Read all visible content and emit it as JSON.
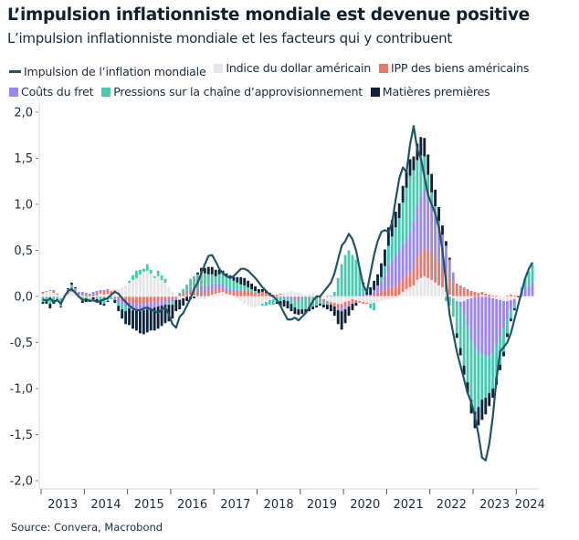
{
  "title": "L’impulsion inflationniste mondiale est devenue positive",
  "subtitle": "L’impulsion inflationniste mondiale et les facteurs qui y contribuent",
  "source": "Source: Convera, Macrobond",
  "legend": [
    {
      "label": "Impulsion de l’inflation mondiale",
      "type": "line",
      "color": "#1f5566"
    },
    {
      "label": "Indice du dollar américain",
      "type": "box",
      "color": "#e6e6e6"
    },
    {
      "label": "IPP des biens américains",
      "type": "box",
      "color": "#e8796b"
    },
    {
      "label": "Coûts du fret",
      "type": "box",
      "color": "#9b86ee"
    },
    {
      "label": "Pressions sur la chaîne d’approvisionnement",
      "type": "box",
      "color": "#48c9b0"
    },
    {
      "label": "Matières premières",
      "type": "box",
      "color": "#0e2238"
    }
  ],
  "chart_data": {
    "type": "bar",
    "stacked": true,
    "title": "L’impulsion inflationniste mondiale est devenue positive",
    "subtitle": "L’impulsion inflationniste mondiale et les facteurs qui y contribuent",
    "xlabel": "",
    "ylabel": "",
    "ylim": [
      -2.0,
      2.0
    ],
    "yticks": [
      2.0,
      1.5,
      1.0,
      0.5,
      0.0,
      -0.5,
      -1.0,
      -1.5,
      -2.0
    ],
    "ytick_labels": [
      "2,0",
      "1,5",
      "1,0",
      "0,5",
      "0,0",
      "-0,5",
      "-1,0",
      "-1,5",
      "-2,0"
    ],
    "xticks": [
      "2013",
      "2014",
      "2015",
      "2016",
      "2017",
      "2018",
      "2019",
      "2020",
      "2021",
      "2022",
      "2023",
      "2024"
    ],
    "x_start": "2013-01",
    "frequency": "monthly",
    "grid": false,
    "legend_position": "top",
    "series": [
      {
        "name": "Indice du dollar américain",
        "kind": "bar",
        "color": "#e6e6e6",
        "values": [
          0.03,
          0.05,
          0.06,
          0.04,
          0.02,
          -0.02,
          -0.03,
          0.03,
          0.05,
          0.04,
          0.02,
          0.01,
          0.0,
          -0.02,
          -0.01,
          0.01,
          0.03,
          0.02,
          0.03,
          0.02,
          0.05,
          0.08,
          0.1,
          0.12,
          0.15,
          0.18,
          0.2,
          0.24,
          0.27,
          0.28,
          0.25,
          0.2,
          0.22,
          0.18,
          0.15,
          0.1,
          0.05,
          0.0,
          -0.03,
          -0.02,
          0.0,
          0.02,
          0.01,
          -0.01,
          -0.02,
          -0.03,
          0.0,
          0.02,
          0.03,
          0.04,
          0.05,
          0.03,
          0.02,
          0.01,
          -0.02,
          -0.05,
          -0.08,
          -0.1,
          -0.12,
          -0.12,
          -0.1,
          -0.08,
          -0.06,
          -0.04,
          -0.03,
          0.0,
          0.02,
          0.04,
          0.05,
          0.06,
          0.05,
          0.04,
          0.03,
          0.02,
          0.03,
          0.04,
          0.02,
          0.0,
          -0.03,
          -0.05,
          -0.06,
          -0.07,
          -0.08,
          -0.08,
          -0.06,
          -0.05,
          -0.03,
          -0.04,
          -0.05,
          -0.06,
          -0.07,
          -0.08,
          -0.07,
          -0.06,
          -0.05,
          -0.04,
          -0.03,
          -0.02,
          0.0,
          0.02,
          0.05,
          0.08,
          0.1,
          0.12,
          0.18,
          0.2,
          0.22,
          0.2,
          0.18,
          0.15,
          0.12,
          0.1,
          0.05,
          0.02,
          -0.02,
          -0.05,
          -0.06,
          -0.05,
          -0.03,
          -0.02,
          0.0,
          0.0,
          0.02,
          0.01,
          0.0,
          -0.02,
          -0.03,
          -0.04,
          -0.05,
          -0.05,
          -0.04,
          -0.03,
          0.0,
          0.0,
          0.0,
          0.0,
          0.0
        ]
      },
      {
        "name": "IPP des biens américains",
        "kind": "bar",
        "color": "#e8796b",
        "values": [
          0.02,
          0.01,
          0.0,
          0.02,
          0.01,
          0.0,
          0.0,
          0.02,
          0.03,
          0.01,
          0.0,
          0.01,
          0.02,
          0.01,
          0.02,
          0.03,
          0.02,
          0.04,
          0.05,
          0.04,
          0.02,
          -0.02,
          -0.03,
          -0.05,
          -0.06,
          -0.07,
          -0.07,
          -0.08,
          -0.07,
          -0.07,
          -0.06,
          -0.06,
          -0.05,
          -0.05,
          -0.04,
          -0.03,
          -0.02,
          -0.02,
          0.02,
          0.03,
          0.03,
          0.04,
          0.05,
          0.04,
          0.05,
          0.04,
          0.05,
          0.06,
          0.05,
          0.05,
          0.04,
          0.03,
          0.03,
          0.04,
          0.05,
          0.06,
          0.07,
          0.06,
          0.05,
          0.04,
          0.04,
          0.05,
          0.04,
          0.03,
          0.02,
          0.02,
          0.01,
          0.0,
          0.0,
          -0.01,
          -0.02,
          -0.02,
          -0.01,
          0.0,
          0.0,
          -0.01,
          -0.02,
          -0.02,
          -0.02,
          -0.02,
          -0.03,
          -0.04,
          -0.05,
          -0.05,
          -0.05,
          -0.04,
          -0.04,
          -0.03,
          -0.02,
          -0.02,
          -0.01,
          0.0,
          0.02,
          0.04,
          0.06,
          0.08,
          0.1,
          0.1,
          0.12,
          0.13,
          0.14,
          0.15,
          0.16,
          0.2,
          0.25,
          0.28,
          0.3,
          0.32,
          0.3,
          0.28,
          0.25,
          0.22,
          0.2,
          0.18,
          0.16,
          0.14,
          0.12,
          0.1,
          0.08,
          0.06,
          0.05,
          0.04,
          0.03,
          0.02,
          0.02,
          0.01,
          0.01,
          0.0,
          0.0,
          0.01,
          0.02,
          0.01,
          0.01,
          0.0,
          0.0,
          0.0,
          0.0
        ]
      },
      {
        "name": "Coûts du fret",
        "kind": "bar",
        "color": "#9b86ee",
        "values": [
          0.0,
          0.0,
          0.01,
          0.01,
          0.0,
          0.0,
          0.0,
          0.01,
          0.02,
          0.02,
          0.03,
          0.03,
          0.02,
          0.02,
          0.03,
          0.02,
          0.02,
          0.01,
          0.0,
          0.0,
          -0.02,
          -0.04,
          -0.05,
          -0.06,
          -0.07,
          -0.08,
          -0.08,
          -0.08,
          -0.08,
          -0.07,
          -0.07,
          -0.06,
          -0.06,
          -0.05,
          -0.05,
          -0.04,
          -0.03,
          -0.02,
          -0.01,
          0.0,
          0.02,
          0.03,
          0.04,
          0.05,
          0.06,
          0.07,
          0.07,
          0.06,
          0.06,
          0.05,
          0.04,
          0.03,
          0.03,
          0.02,
          0.02,
          0.01,
          0.0,
          0.0,
          0.0,
          0.0,
          0.0,
          0.0,
          0.0,
          0.0,
          0.0,
          -0.01,
          -0.01,
          -0.02,
          -0.02,
          -0.02,
          -0.02,
          -0.02,
          -0.01,
          -0.01,
          0.0,
          0.0,
          0.0,
          0.0,
          0.0,
          0.01,
          0.01,
          0.0,
          -0.02,
          -0.03,
          -0.03,
          -0.02,
          -0.01,
          0.0,
          0.02,
          0.03,
          0.02,
          0.02,
          0.05,
          0.08,
          0.1,
          0.15,
          0.25,
          0.3,
          0.33,
          0.35,
          0.38,
          0.4,
          0.45,
          0.5,
          0.55,
          0.6,
          0.65,
          0.55,
          0.5,
          0.45,
          0.4,
          0.35,
          0.3,
          0.2,
          0.1,
          0.0,
          -0.05,
          -0.15,
          -0.3,
          -0.45,
          -0.55,
          -0.6,
          -0.62,
          -0.65,
          -0.65,
          -0.6,
          -0.5,
          -0.4,
          -0.3,
          -0.2,
          -0.1,
          -0.05,
          0.0,
          0.05,
          0.1,
          0.12,
          0.15
        ]
      },
      {
        "name": "Pressions sur la chaîne d’approvisionnement",
        "kind": "bar",
        "color": "#48c9b0",
        "values": [
          -0.06,
          -0.05,
          -0.08,
          -0.04,
          -0.03,
          -0.09,
          0.0,
          0.02,
          0.03,
          0.02,
          0.0,
          -0.05,
          -0.03,
          -0.02,
          0.0,
          -0.03,
          -0.06,
          -0.08,
          -0.05,
          -0.03,
          -0.02,
          -0.04,
          -0.06,
          -0.05,
          0.02,
          0.05,
          0.08,
          0.05,
          0.03,
          0.07,
          0.04,
          0.02,
          0.06,
          0.05,
          0.04,
          -0.02,
          -0.04,
          0.0,
          0.02,
          0.05,
          0.08,
          0.1,
          0.12,
          0.15,
          0.16,
          0.14,
          0.12,
          0.1,
          0.08,
          0.1,
          0.12,
          0.14,
          0.12,
          0.1,
          0.08,
          0.06,
          0.05,
          0.04,
          0.03,
          0.02,
          0.0,
          -0.02,
          -0.04,
          -0.05,
          -0.06,
          -0.05,
          -0.04,
          -0.02,
          -0.03,
          -0.05,
          -0.08,
          -0.1,
          -0.12,
          -0.13,
          -0.12,
          -0.1,
          -0.08,
          -0.06,
          -0.04,
          -0.02,
          0.0,
          0.05,
          0.2,
          0.35,
          0.45,
          0.5,
          0.45,
          0.4,
          0.3,
          0.1,
          0.0,
          -0.05,
          -0.08,
          0.0,
          0.05,
          0.1,
          0.2,
          0.25,
          0.3,
          0.35,
          0.45,
          0.55,
          0.6,
          0.55,
          0.5,
          0.45,
          0.35,
          0.25,
          0.15,
          0.1,
          0.05,
          0.0,
          -0.05,
          -0.1,
          -0.2,
          -0.35,
          -0.45,
          -0.55,
          -0.6,
          -0.65,
          -0.7,
          -0.6,
          -0.5,
          -0.45,
          -0.4,
          -0.38,
          -0.35,
          -0.3,
          -0.25,
          -0.15,
          -0.1,
          -0.05,
          0.0,
          0.05,
          0.1,
          0.15,
          0.2
        ]
      },
      {
        "name": "Matières premières",
        "kind": "bar",
        "color": "#0e2238",
        "values": [
          -0.02,
          -0.03,
          -0.05,
          -0.04,
          -0.02,
          -0.01,
          0.0,
          0.01,
          0.02,
          0.01,
          -0.01,
          -0.02,
          -0.03,
          -0.02,
          -0.02,
          -0.02,
          -0.03,
          -0.02,
          -0.01,
          0.0,
          -0.03,
          -0.06,
          -0.1,
          -0.14,
          -0.18,
          -0.2,
          -0.22,
          -0.24,
          -0.26,
          -0.25,
          -0.24,
          -0.25,
          -0.24,
          -0.22,
          -0.2,
          -0.18,
          -0.15,
          -0.12,
          -0.1,
          -0.08,
          -0.05,
          -0.03,
          -0.02,
          0.02,
          0.04,
          0.06,
          0.08,
          0.08,
          0.07,
          0.05,
          0.03,
          0.02,
          0.03,
          0.04,
          0.06,
          0.08,
          0.08,
          0.07,
          0.06,
          0.05,
          0.04,
          0.03,
          0.02,
          0.01,
          0.0,
          -0.02,
          -0.05,
          -0.07,
          -0.08,
          -0.08,
          -0.07,
          -0.06,
          -0.05,
          -0.04,
          -0.04,
          -0.03,
          -0.02,
          -0.02,
          -0.03,
          -0.05,
          -0.07,
          -0.1,
          -0.15,
          -0.2,
          -0.15,
          -0.1,
          -0.07,
          -0.03,
          0.0,
          0.02,
          0.05,
          0.08,
          0.1,
          0.12,
          0.15,
          0.18,
          0.2,
          0.18,
          0.17,
          0.16,
          0.18,
          0.2,
          0.18,
          0.15,
          0.18,
          0.2,
          0.2,
          0.22,
          0.2,
          0.18,
          0.15,
          0.1,
          0.05,
          0.02,
          0.0,
          -0.05,
          -0.08,
          -0.1,
          -0.12,
          -0.15,
          -0.18,
          -0.2,
          -0.22,
          -0.18,
          -0.14,
          -0.1,
          -0.08,
          -0.06,
          -0.05,
          -0.04,
          -0.03,
          -0.02,
          -0.01,
          0.0,
          0.0,
          0.0,
          0.0
        ]
      },
      {
        "name": "Impulsion de l’inflation mondiale",
        "kind": "line",
        "color": "#1f5566",
        "values": [
          -0.03,
          -0.05,
          -0.02,
          -0.06,
          -0.04,
          -0.08,
          0.0,
          0.06,
          0.08,
          0.04,
          0.0,
          -0.04,
          -0.03,
          -0.05,
          -0.04,
          -0.06,
          -0.05,
          -0.03,
          -0.02,
          0.02,
          0.05,
          0.03,
          -0.02,
          -0.06,
          -0.1,
          -0.13,
          -0.15,
          -0.15,
          -0.13,
          -0.12,
          -0.14,
          -0.16,
          -0.18,
          -0.14,
          -0.12,
          -0.2,
          -0.3,
          -0.34,
          -0.22,
          -0.18,
          -0.1,
          -0.02,
          0.08,
          0.15,
          0.25,
          0.35,
          0.44,
          0.45,
          0.38,
          0.3,
          0.25,
          0.22,
          0.2,
          0.22,
          0.26,
          0.3,
          0.3,
          0.28,
          0.24,
          0.2,
          0.15,
          0.1,
          0.06,
          0.02,
          0.0,
          -0.04,
          -0.1,
          -0.18,
          -0.25,
          -0.25,
          -0.23,
          -0.26,
          -0.22,
          -0.18,
          -0.12,
          -0.05,
          0.0,
          0.0,
          0.05,
          0.1,
          0.15,
          0.25,
          0.4,
          0.55,
          0.6,
          0.68,
          0.62,
          0.5,
          0.3,
          0.12,
          0.05,
          0.25,
          0.45,
          0.6,
          0.7,
          0.72,
          0.7,
          0.8,
          1.05,
          1.28,
          1.4,
          1.35,
          1.65,
          1.85,
          1.6,
          1.5,
          1.3,
          1.1,
          1.0,
          0.9,
          0.75,
          0.5,
          0.15,
          -0.2,
          -0.4,
          -0.6,
          -0.75,
          -0.9,
          -1.05,
          -1.15,
          -1.3,
          -1.5,
          -1.75,
          -1.78,
          -1.6,
          -1.3,
          -0.9,
          -0.6,
          -0.55,
          -0.5,
          -0.4,
          -0.25,
          -0.1,
          0.05,
          0.2,
          0.3,
          0.37
        ]
      }
    ]
  }
}
